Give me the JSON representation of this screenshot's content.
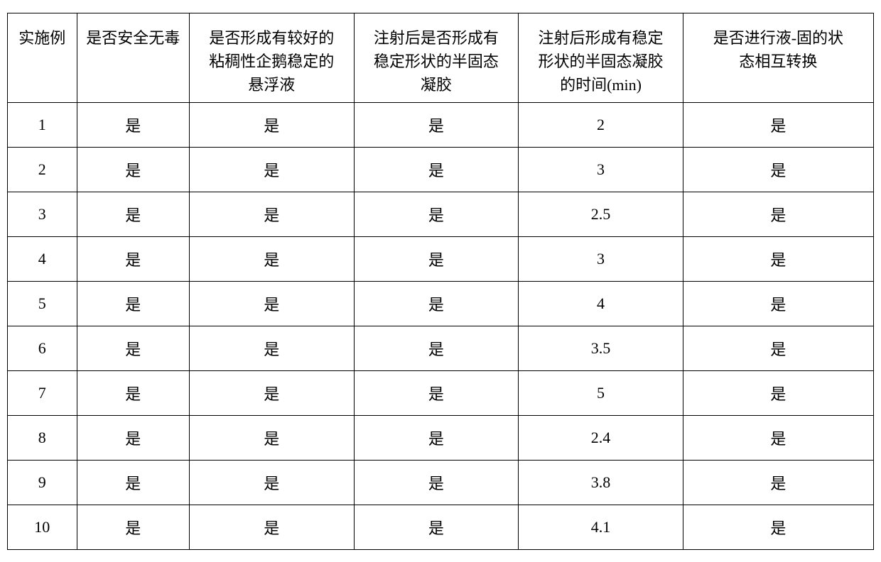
{
  "table": {
    "columns": [
      "实施例",
      "是否安全无毒",
      "是否形成有较好的\n粘稠性企鹅稳定的\n悬浮液",
      "注射后是否形成有\n稳定形状的半固态\n凝胶",
      "注射后形成有稳定\n形状的半固态凝胶\n的时间(min)",
      "是否进行液-固的状\n态相互转换"
    ],
    "rows": [
      [
        "1",
        "是",
        "是",
        "是",
        "2",
        "是"
      ],
      [
        "2",
        "是",
        "是",
        "是",
        "3",
        "是"
      ],
      [
        "3",
        "是",
        "是",
        "是",
        "2.5",
        "是"
      ],
      [
        "4",
        "是",
        "是",
        "是",
        "3",
        "是"
      ],
      [
        "5",
        "是",
        "是",
        "是",
        "4",
        "是"
      ],
      [
        "6",
        "是",
        "是",
        "是",
        "3.5",
        "是"
      ],
      [
        "7",
        "是",
        "是",
        "是",
        "5",
        "是"
      ],
      [
        "8",
        "是",
        "是",
        "是",
        "2.4",
        "是"
      ],
      [
        "9",
        "是",
        "是",
        "是",
        "3.8",
        "是"
      ],
      [
        "10",
        "是",
        "是",
        "是",
        "4.1",
        "是"
      ]
    ],
    "column_widths": [
      "8%",
      "13%",
      "19%",
      "19%",
      "19%",
      "22%"
    ],
    "header_fontsize": 22,
    "cell_fontsize": 22,
    "border_color": "#000000",
    "background_color": "#ffffff",
    "text_color": "#000000",
    "font_family": "SimSun"
  }
}
